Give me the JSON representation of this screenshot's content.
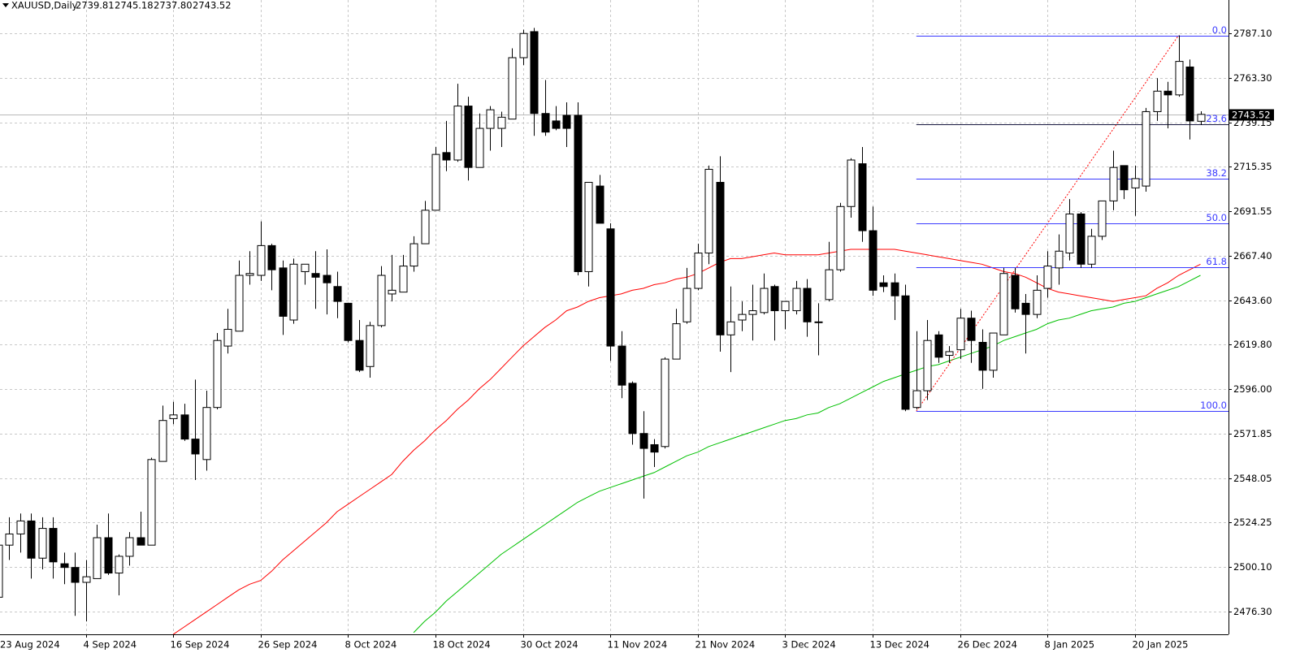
{
  "chart_data": {
    "type": "candlestick",
    "header": {
      "symbol": "XAUUSD,Daily",
      "ohlc_labels": [
        "2739.81",
        "2745.18",
        "2737.80",
        "2743.52"
      ]
    },
    "categories": [
      "23 Aug 2024",
      null,
      null,
      null,
      null,
      null,
      null,
      null,
      "4 Sep 2024",
      null,
      null,
      null,
      null,
      null,
      null,
      null,
      "16 Sep 2024",
      null,
      null,
      null,
      null,
      null,
      null,
      null,
      "26 Sep 2024",
      null,
      null,
      null,
      null,
      null,
      null,
      null,
      "8 Oct 2024",
      null,
      null,
      null,
      null,
      null,
      null,
      null,
      "18 Oct 2024",
      null,
      null,
      null,
      null,
      null,
      null,
      null,
      "30 Oct 2024",
      null,
      null,
      null,
      null,
      null,
      null,
      null,
      "11 Nov 2024",
      null,
      null,
      null,
      null,
      null,
      null,
      null,
      "21 Nov 2024",
      null,
      null,
      null,
      null,
      null,
      null,
      null,
      "3 Dec 2024",
      null,
      null,
      null,
      null,
      null,
      null,
      null,
      "13 Dec 2024",
      null,
      null,
      null,
      null,
      null,
      null,
      null,
      "26 Dec 2024",
      null,
      null,
      null,
      null,
      null,
      null,
      null,
      "8 Jan 2025",
      null,
      null,
      null,
      null,
      null,
      null,
      null,
      "20 Jan 2025",
      null,
      null,
      null,
      null,
      null,
      null
    ],
    "open": [
      2484,
      2512,
      2518,
      2525,
      2505,
      2521,
      2502,
      2500,
      2492,
      2494,
      2516,
      2497,
      2506,
      2516,
      2512,
      2557,
      2580,
      2582,
      2569,
      2558,
      2586,
      2619,
      2627,
      2657,
      2657,
      2673,
      2661,
      2633,
      2659,
      2658,
      2657,
      2651,
      2642,
      2622,
      2608,
      2630,
      2647,
      2648,
      2662,
      2674,
      2692,
      2723,
      2719,
      2748,
      2715,
      2736,
      2736,
      2741,
      2774,
      2788,
      2744,
      2740,
      2743,
      2743,
      2659,
      2705,
      2682,
      2619,
      2599,
      2572,
      2566,
      2565,
      2612,
      2632,
      2650,
      2669,
      2707,
      2625,
      2633,
      2636,
      2637,
      2651,
      2638,
      2638,
      2650,
      2632,
      2644,
      2660,
      2694,
      2717,
      2681,
      2653,
      2653,
      2646,
      2586,
      2595,
      2625,
      2614,
      2617,
      2634,
      2621,
      2606,
      2625,
      2657,
      2642,
      2636,
      2650,
      2661,
      2669,
      2690,
      2663,
      2678,
      2697,
      2716,
      2704,
      2705,
      2745,
      2756,
      2754,
      2769,
      2739.81
    ],
    "high": [
      2517,
      2527,
      2529,
      2529,
      2527,
      2527,
      2508,
      2508,
      2504,
      2523,
      2529,
      2507,
      2519,
      2530,
      2559,
      2587,
      2589,
      2588,
      2601,
      2595,
      2626,
      2639,
      2665,
      2670,
      2686,
      2674,
      2665,
      2666,
      2663,
      2670,
      2671,
      2659,
      2642,
      2633,
      2632,
      2662,
      2668,
      2668,
      2678,
      2697,
      2726,
      2740,
      2760,
      2753,
      2744,
      2748,
      2745,
      2779,
      2789,
      2790,
      2762,
      2748,
      2750,
      2750,
      2707,
      2711,
      2685,
      2627,
      2600,
      2584,
      2569,
      2613,
      2639,
      2661,
      2674,
      2716,
      2721,
      2651,
      2643,
      2652,
      2658,
      2652,
      2643,
      2654,
      2655,
      2642,
      2675,
      2696,
      2720,
      2726,
      2694,
      2657,
      2658,
      2652,
      2627,
      2633,
      2627,
      2619,
      2639,
      2638,
      2628,
      2626,
      2661,
      2661,
      2647,
      2657,
      2670,
      2679,
      2698,
      2691,
      2682,
      2697,
      2724,
      2716,
      2716,
      2747,
      2763,
      2761,
      2786,
      2773,
      2745.18
    ],
    "low": [
      2484,
      2504,
      2508,
      2494,
      2499,
      2494,
      2491,
      2474,
      2471,
      2494,
      2496,
      2485,
      2501,
      2512,
      2512,
      2557,
      2577,
      2568,
      2547,
      2552,
      2585,
      2615,
      2627,
      2652,
      2654,
      2649,
      2625,
      2631,
      2652,
      2639,
      2636,
      2634,
      2621,
      2605,
      2602,
      2629,
      2643,
      2648,
      2659,
      2674,
      2692,
      2713,
      2718,
      2708,
      2715,
      2724,
      2726,
      2741,
      2770,
      2732,
      2732,
      2735,
      2726,
      2657,
      2651,
      2685,
      2611,
      2591,
      2566,
      2537,
      2554,
      2564,
      2612,
      2631,
      2649,
      2663,
      2616,
      2605,
      2627,
      2622,
      2636,
      2622,
      2628,
      2636,
      2624,
      2614,
      2643,
      2659,
      2688,
      2675,
      2646,
      2648,
      2633,
      2584,
      2585,
      2590,
      2610,
      2610,
      2612,
      2610,
      2596,
      2602,
      2625,
      2637,
      2615,
      2634,
      2645,
      2652,
      2665,
      2661,
      2661,
      2676,
      2692,
      2698,
      2689,
      2702,
      2740,
      2736,
      2753,
      2730,
      2737.8
    ],
    "close": [
      2512,
      2518,
      2525,
      2505,
      2521,
      2503,
      2500,
      2492,
      2495,
      2516,
      2497,
      2506,
      2516,
      2512,
      2558,
      2579,
      2582,
      2569,
      2561,
      2586,
      2622,
      2628,
      2657,
      2658,
      2673,
      2660,
      2635,
      2663,
      2663,
      2656,
      2653,
      2643,
      2622,
      2606,
      2630,
      2657,
      2649,
      2662,
      2674,
      2692,
      2722,
      2719,
      2748,
      2715,
      2736,
      2746,
      2742,
      2774,
      2787,
      2744,
      2734,
      2736,
      2736,
      2659,
      2707,
      2685,
      2619,
      2598,
      2572,
      2564,
      2562,
      2612,
      2631,
      2650,
      2669,
      2714,
      2625,
      2632,
      2636,
      2638,
      2650,
      2638,
      2643,
      2650,
      2632,
      2632,
      2660,
      2694,
      2719,
      2681,
      2649,
      2651,
      2646,
      2585,
      2595,
      2622,
      2613,
      2616,
      2634,
      2622,
      2606,
      2626,
      2658,
      2639,
      2636,
      2649,
      2662,
      2670,
      2690,
      2663,
      2678,
      2697,
      2715,
      2703,
      2709,
      2745,
      2756,
      2754,
      2772,
      2740,
      2743.52
    ],
    "up_color": "#ffffff",
    "down_color": "#000000",
    "wick_color": "#000000",
    "series": [
      {
        "color": "#ff0000",
        "values": [
          null,
          null,
          null,
          null,
          null,
          null,
          null,
          null,
          null,
          null,
          null,
          null,
          null,
          null,
          null,
          null,
          2464,
          2468,
          2472,
          2476,
          2480,
          2484,
          2488,
          2491,
          2493,
          2498,
          2504,
          2509,
          2514,
          2519,
          2524,
          2530,
          2534,
          2538,
          2542,
          2546,
          2550,
          2557,
          2563,
          2568,
          2574,
          2579,
          2585,
          2590,
          2596,
          2601,
          2607,
          2613,
          2619,
          2624,
          2629,
          2633,
          2638,
          2640,
          2643,
          2645,
          2646,
          2647,
          2649,
          2650,
          2652,
          2653,
          2655,
          2656,
          2658,
          2661,
          2664,
          2666,
          2666,
          2667,
          2668,
          2669,
          2668,
          2668,
          2668,
          2668,
          2669,
          2670,
          2671,
          2671,
          2671,
          2671,
          2671,
          2670,
          2669,
          2668,
          2667,
          2666,
          2665,
          2664,
          2663,
          2661,
          2659,
          2658,
          2656,
          2653,
          2650,
          2648,
          2647,
          2646,
          2645,
          2644,
          2643,
          2644,
          2645,
          2646,
          2650,
          2653,
          2657,
          2660,
          2663
        ]
      },
      {
        "color": "#00c000",
        "values": [
          null,
          null,
          null,
          null,
          null,
          null,
          null,
          null,
          null,
          null,
          null,
          null,
          null,
          null,
          null,
          null,
          null,
          null,
          null,
          null,
          null,
          null,
          null,
          null,
          null,
          null,
          null,
          null,
          null,
          null,
          null,
          null,
          null,
          null,
          null,
          null,
          null,
          null,
          2465,
          2471,
          2476,
          2482,
          2487,
          2492,
          2497,
          2502,
          2507,
          2511,
          2515,
          2519,
          2523,
          2527,
          2531,
          2535,
          2538,
          2541,
          2543,
          2545,
          2547,
          2549,
          2551,
          2554,
          2557,
          2560,
          2562,
          2565,
          2567,
          2569,
          2571,
          2573,
          2575,
          2577,
          2579,
          2580,
          2582,
          2583,
          2586,
          2588,
          2591,
          2594,
          2597,
          2600,
          2602,
          2604,
          2606,
          2608,
          2609,
          2611,
          2613,
          2615,
          2617,
          2619,
          2622,
          2624,
          2626,
          2628,
          2631,
          2633,
          2634,
          2636,
          2638,
          2639,
          2640,
          2642,
          2643,
          2645,
          2647,
          2649,
          2651,
          2654,
          2657
        ]
      }
    ],
    "fibonacci": {
      "high": 2786,
      "low": 2584,
      "color": "#3a3aff",
      "levels": [
        {
          "value": 0,
          "label": "0.0"
        },
        {
          "value": 23.6,
          "label": "23.6"
        },
        {
          "value": 38.2,
          "label": "38.2"
        },
        {
          "value": 50,
          "label": "50.0"
        },
        {
          "value": 61.8,
          "label": "61.8"
        },
        {
          "value": 100,
          "label": "100.0"
        }
      ]
    },
    "ylim": [
      2464.5,
      2805
    ],
    "yticks": [
      {
        "value": 2787.1,
        "label": "2787.10"
      },
      {
        "value": 2763.3,
        "label": "2763.30"
      },
      {
        "value": 2739.15,
        "label": "2739.15"
      },
      {
        "value": 2715.35,
        "label": "2715.35"
      },
      {
        "value": 2691.55,
        "label": "2691.55"
      },
      {
        "value": 2667.4,
        "label": "2667.40"
      },
      {
        "value": 2643.6,
        "label": "2643.60"
      },
      {
        "value": 2619.8,
        "label": "2619.80"
      },
      {
        "value": 2596,
        "label": "2596.00"
      },
      {
        "value": 2571.85,
        "label": "2571.85"
      },
      {
        "value": 2548.05,
        "label": "2548.05"
      },
      {
        "value": 2524.25,
        "label": "2524.25"
      },
      {
        "value": 2500.1,
        "label": "2500.10"
      },
      {
        "value": 2476.3,
        "label": "2476.30"
      }
    ],
    "grid": true
  }
}
